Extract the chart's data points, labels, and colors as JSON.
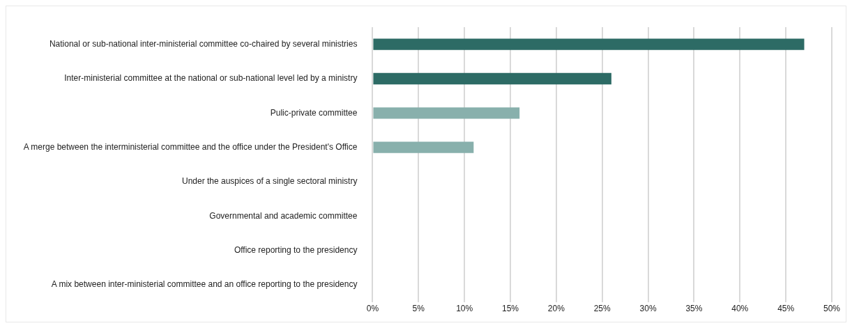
{
  "chart_data": {
    "type": "bar",
    "orientation": "horizontal",
    "categories": [
      "National or sub-national inter-ministerial committee co-chaired by several ministries",
      "Inter-ministerial committee at the national or sub-national level led by a ministry",
      "Pulic-private committee",
      "A merge between the interministerial committee and the office under the President's Office",
      "Under the auspices of a single sectoral ministry",
      "Governmental and academic committee",
      "Office reporting to the presidency",
      "A mix between inter-ministerial committee and an office reporting to the presidency"
    ],
    "values": [
      47,
      26,
      16,
      11,
      0,
      0,
      0,
      0
    ],
    "colors": [
      "#2d6b65",
      "#2d6b65",
      "#88b0ac",
      "#88b0ac",
      "#88b0ac",
      "#88b0ac",
      "#88b0ac",
      "#88b0ac"
    ],
    "xlim": [
      0,
      50
    ],
    "xticks": [
      {
        "value": 0,
        "label": "0%"
      },
      {
        "value": 5,
        "label": "5%"
      },
      {
        "value": 10,
        "label": "10%"
      },
      {
        "value": 15,
        "label": "15%"
      },
      {
        "value": 20,
        "label": "20%"
      },
      {
        "value": 25,
        "label": "25%"
      },
      {
        "value": 30,
        "label": "30%"
      },
      {
        "value": 35,
        "label": "35%"
      },
      {
        "value": 40,
        "label": "40%"
      },
      {
        "value": 45,
        "label": "45%"
      },
      {
        "value": 50,
        "label": "50%"
      }
    ],
    "grid": "x",
    "legend": false
  }
}
